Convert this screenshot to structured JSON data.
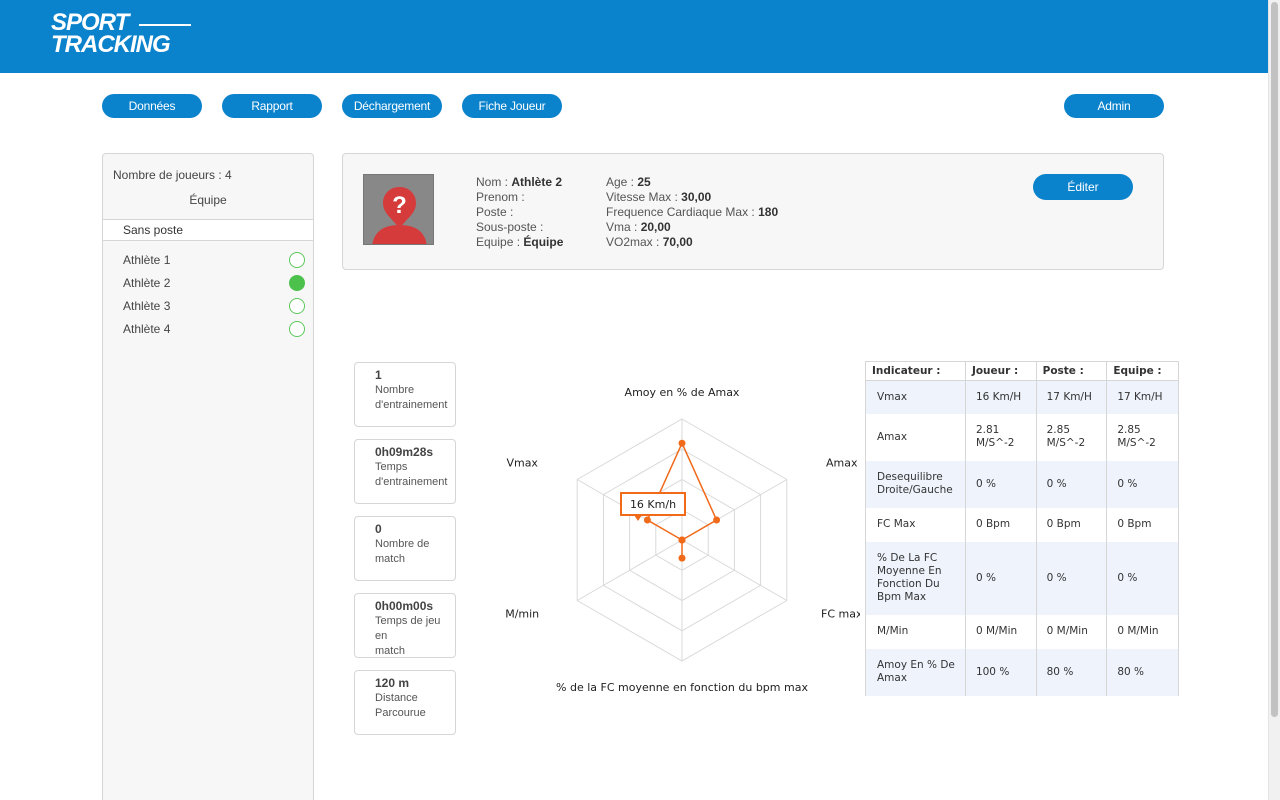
{
  "brand": {
    "line1": "SPORT",
    "line2": "TRACKING"
  },
  "nav": {
    "donnees": "Données",
    "rapport": "Rapport",
    "dechargement": "Déchargement",
    "fiche_joueur": "Fiche Joueur",
    "admin": "Admin"
  },
  "sidebar": {
    "count_label": "Nombre de joueurs : 4",
    "team": "Équipe",
    "group": "Sans poste",
    "athletes": [
      {
        "name": "Athlète 1",
        "selected": false
      },
      {
        "name": "Athlète 2",
        "selected": true
      },
      {
        "name": "Athlète 3",
        "selected": false
      },
      {
        "name": "Athlète 4",
        "selected": false
      }
    ]
  },
  "profile": {
    "nom_label": "Nom :",
    "nom": "Athlète 2",
    "prenom_label": "Prenom :",
    "prenom": "",
    "poste_label": "Poste :",
    "poste": "",
    "sous_poste_label": "Sous-poste :",
    "sous_poste": "",
    "equipe_label": "Equipe :",
    "equipe": "Équipe",
    "age_label": "Age :",
    "age": "25",
    "vitesse_label": "Vitesse Max :",
    "vitesse": "30,00",
    "fc_label": "Frequence Cardiaque Max :",
    "fc": "180",
    "vma_label": "Vma :",
    "vma": "20,00",
    "vo2_label": "VO2max :",
    "vo2": "70,00",
    "edit_label": "Éditer"
  },
  "stats": [
    {
      "value": "1",
      "label1": "Nombre",
      "label2": "d'entrainement"
    },
    {
      "value": "0h09m28s",
      "label1": "Temps",
      "label2": "d'entrainement"
    },
    {
      "value": "0",
      "label1": "Nombre de",
      "label2": "match"
    },
    {
      "value": "0h00m00s",
      "label1": "Temps de jeu en",
      "label2": "match"
    },
    {
      "value": "120 m",
      "label1": "Distance",
      "label2": "Parcourue"
    }
  ],
  "radar": {
    "axes": [
      "Amoy en % de Amax",
      "Amax",
      "FC max",
      "% de la FC moyenne en fonction du bpm max",
      "M/min",
      "Vmax"
    ],
    "values": [
      0.8,
      0.33,
      0,
      0.15,
      0,
      0.33
    ],
    "tooltip": "16 Km/h",
    "color": "#f06a1a"
  },
  "table": {
    "headers": [
      "Indicateur :",
      "Joueur :",
      "Poste :",
      "Equipe :"
    ],
    "rows": [
      [
        "Vmax",
        "16 Km/H",
        "17 Km/H",
        "17 Km/H"
      ],
      [
        "Amax",
        "2.81\nM/S^-2",
        "2.85\nM/S^-2",
        "2.85\nM/S^-2"
      ],
      [
        "Desequilibre\nDroite/Gauche",
        "0 %",
        "0 %",
        "0 %"
      ],
      [
        "FC Max",
        "0 Bpm",
        "0 Bpm",
        "0 Bpm"
      ],
      [
        "% De La FC\nMoyenne En\nFonction Du\nBpm Max",
        "0 %",
        "0 %",
        "0 %"
      ],
      [
        "M/Min",
        "0 M/Min",
        "0 M/Min",
        "0 M/Min"
      ],
      [
        "Amoy En % De\nAmax",
        "100 %",
        "80 %",
        "80 %"
      ]
    ]
  },
  "colors": {
    "primary": "#0a82cc",
    "selected": "#4cc14c",
    "radar_line": "#f06a1a"
  }
}
